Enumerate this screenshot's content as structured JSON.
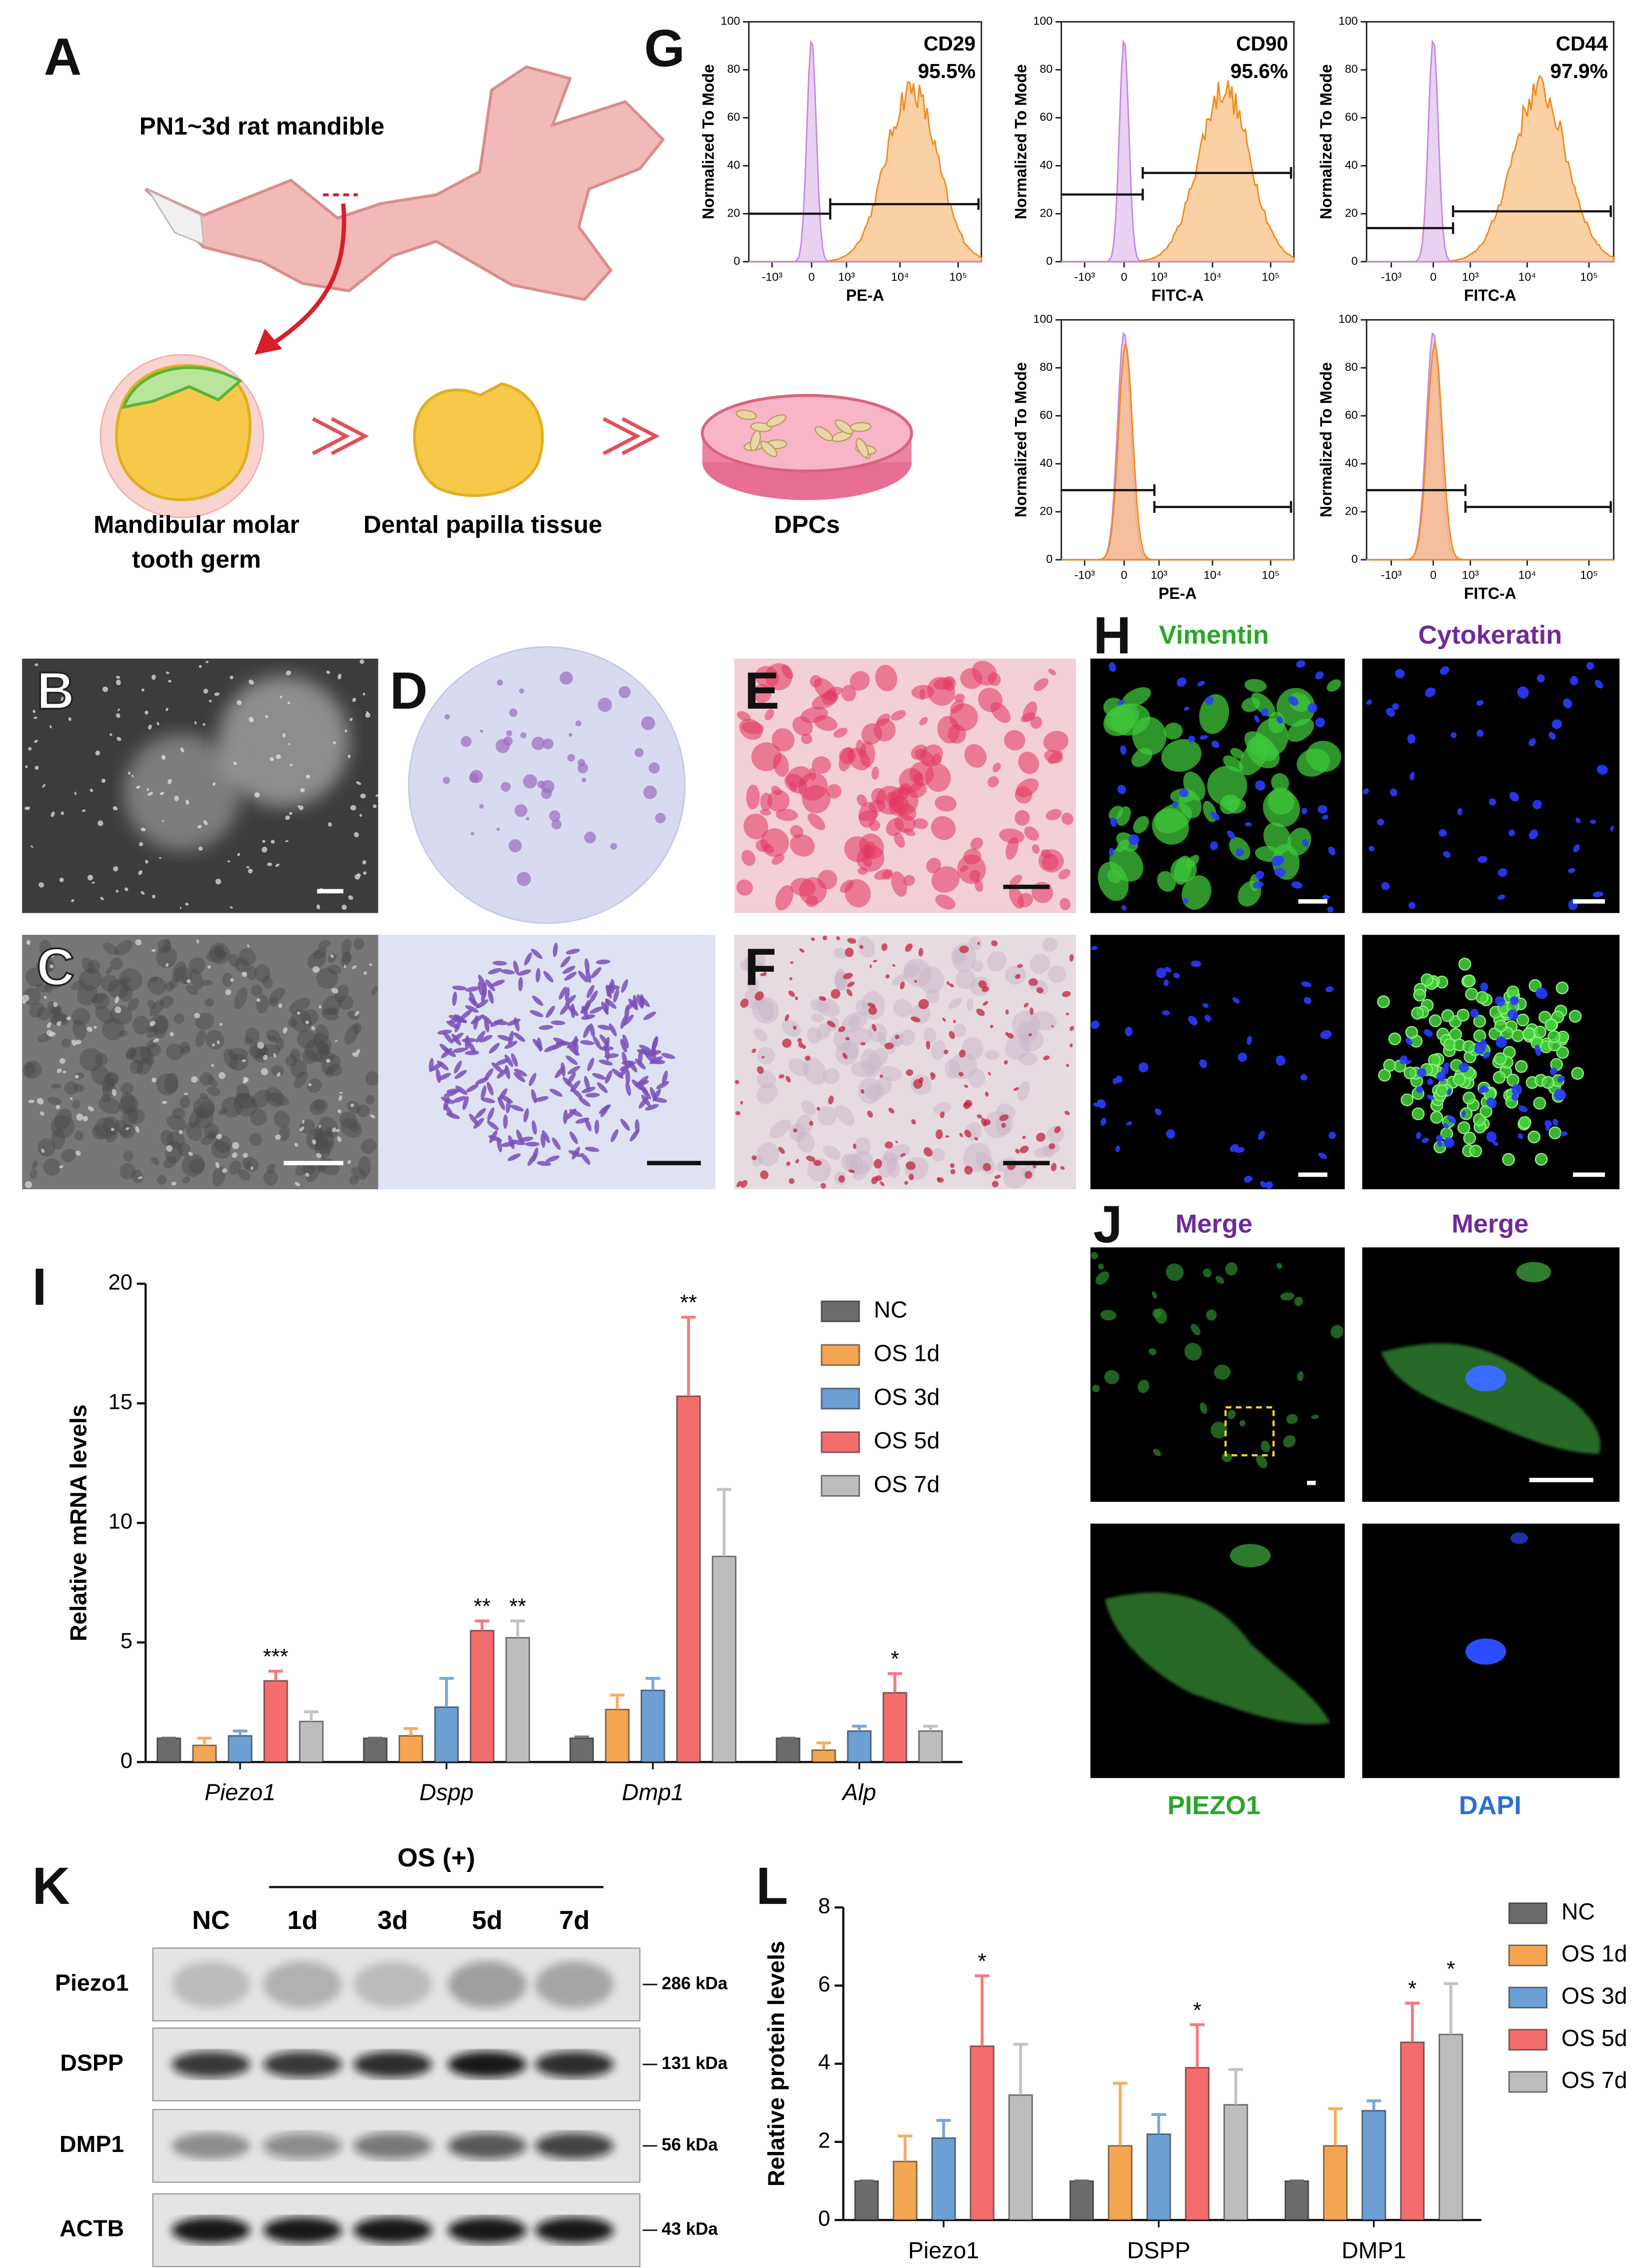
{
  "panel_labels": [
    "A",
    "B",
    "C",
    "D",
    "E",
    "F",
    "G",
    "H",
    "I",
    "J",
    "K",
    "L"
  ],
  "schematic": {
    "title": "PN1~3d rat mandible",
    "steps": [
      [
        "Mandibular molar",
        "tooth germ"
      ],
      [
        "Dental papilla tissue"
      ],
      [
        "DPCs"
      ]
    ]
  },
  "flow": {
    "y_label": "Normalized To Mode",
    "yticks": [
      0,
      20,
      40,
      60,
      80,
      100
    ],
    "xticks": [
      "-10³",
      "0",
      "10³",
      "10⁴",
      "10⁵"
    ],
    "panels": [
      {
        "marker": "CD29",
        "percent": "95.5%",
        "x_label": "PE-A"
      },
      {
        "marker": "CD90",
        "percent": "95.6%",
        "x_label": "FITC-A"
      },
      {
        "marker": "CD44",
        "percent": "97.9%",
        "x_label": "FITC-A"
      },
      {
        "x_label": "PE-A"
      },
      {
        "x_label": "FITC-A"
      }
    ]
  },
  "staining_titles": [
    "Vimentin",
    "Cytokeratin"
  ],
  "immunofluorescence": {
    "titles": [
      "Merge",
      "Merge"
    ],
    "channels": [
      "PIEZO1",
      "DAPI"
    ]
  },
  "western": {
    "group_label": "OS (+)",
    "lanes": [
      "NC",
      "1d",
      "3d",
      "5d",
      "7d"
    ],
    "proteins": [
      "Piezo1",
      "DSPP",
      "DMP1",
      "ACTB"
    ],
    "sizes": [
      "286 kDa",
      "131 kDa",
      "56 kDa",
      "43 kDa"
    ]
  },
  "chart_data": [
    {
      "type": "bar",
      "y_label": "Relative mRNA levels",
      "categories": [
        "Piezo1",
        "Dspp",
        "Dmp1",
        "Alp"
      ],
      "ylim": [
        0,
        20
      ],
      "yticks": [
        0,
        5,
        10,
        15,
        20
      ],
      "series": [
        {
          "name": "NC",
          "color": "#6b6b6b",
          "values": [
            1,
            1,
            1,
            1
          ],
          "errors": [
            0,
            0,
            0.05,
            0
          ]
        },
        {
          "name": "OS 1d",
          "color": "#f4a552",
          "values": [
            0.7,
            1.1,
            2.2,
            0.5
          ],
          "errors": [
            0.3,
            0.3,
            0.6,
            0.3
          ]
        },
        {
          "name": "OS 3d",
          "color": "#6c9fd3",
          "values": [
            1.1,
            2.3,
            3.0,
            1.3
          ],
          "errors": [
            0.2,
            1.2,
            0.5,
            0.2
          ]
        },
        {
          "name": "OS 5d",
          "color": "#f36d6d",
          "values": [
            3.4,
            5.5,
            15.3,
            2.9
          ],
          "errors": [
            0.4,
            0.4,
            3.3,
            0.8
          ],
          "significance": [
            "***",
            "**",
            "**",
            "*"
          ]
        },
        {
          "name": "OS 7d",
          "color": "#bdbdbd",
          "values": [
            1.7,
            5.2,
            8.6,
            1.3
          ],
          "errors": [
            0.4,
            0.7,
            2.8,
            0.2
          ],
          "significance": [
            null,
            "**",
            null,
            null
          ]
        }
      ]
    },
    {
      "type": "bar",
      "y_label": "Relative protein levels",
      "categories": [
        "Piezo1",
        "DSPP",
        "DMP1"
      ],
      "ylim": [
        0,
        8
      ],
      "yticks": [
        0,
        2,
        4,
        6,
        8
      ],
      "series": [
        {
          "name": "NC",
          "color": "#6b6b6b",
          "values": [
            1,
            1,
            1
          ],
          "errors": [
            0,
            0,
            0
          ]
        },
        {
          "name": "OS 1d",
          "color": "#f4a552",
          "values": [
            1.5,
            1.9,
            1.9
          ],
          "errors": [
            0.65,
            1.6,
            0.95
          ]
        },
        {
          "name": "OS 3d",
          "color": "#6c9fd3",
          "values": [
            2.1,
            2.2,
            2.8
          ],
          "errors": [
            0.45,
            0.5,
            0.25
          ]
        },
        {
          "name": "OS 5d",
          "color": "#f36d6d",
          "values": [
            4.45,
            3.9,
            4.55
          ],
          "errors": [
            1.8,
            1.1,
            1.0
          ],
          "significance": [
            "*",
            "*",
            "*"
          ]
        },
        {
          "name": "OS 7d",
          "color": "#bdbdbd",
          "values": [
            3.2,
            2.95,
            4.75
          ],
          "errors": [
            1.3,
            0.9,
            1.3
          ],
          "significance": [
            null,
            null,
            "*"
          ]
        }
      ]
    }
  ]
}
